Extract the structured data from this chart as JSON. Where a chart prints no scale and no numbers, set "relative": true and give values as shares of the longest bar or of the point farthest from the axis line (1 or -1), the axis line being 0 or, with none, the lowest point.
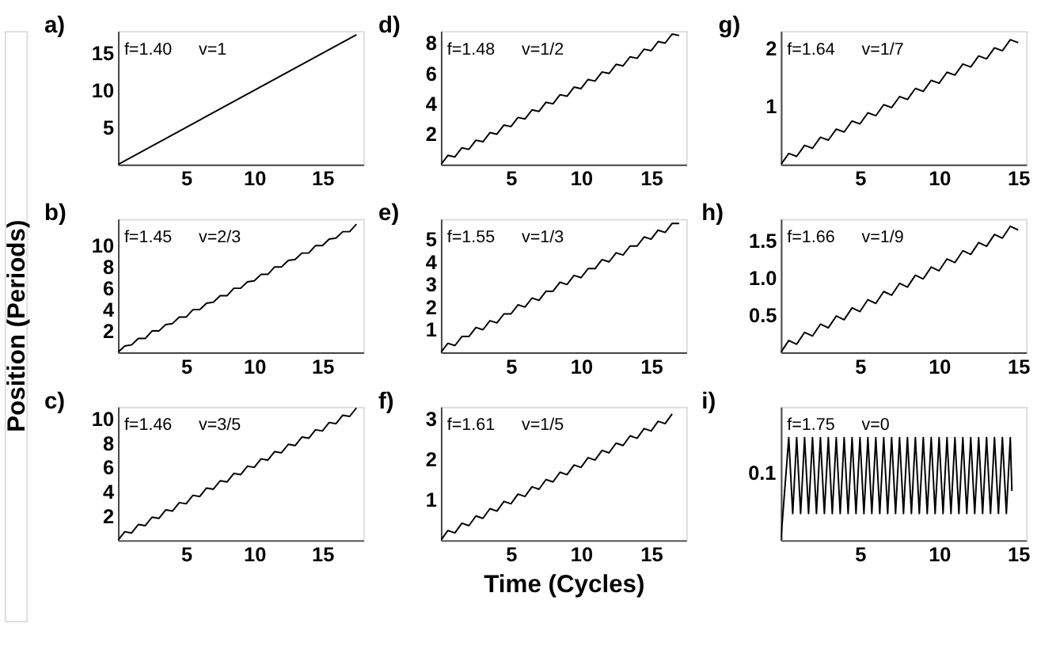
{
  "chart_data": [
    {
      "type": "line",
      "title": "a)",
      "annotations": [
        "f=1.40",
        "v=1"
      ],
      "color": "#000000",
      "xlim": [
        0,
        18
      ],
      "xticks": [
        5,
        10,
        15
      ],
      "ylim": [
        0,
        18
      ],
      "yticks": [
        5,
        10,
        15
      ],
      "x": [
        0,
        17.5
      ],
      "values": [
        0,
        17.5
      ]
    },
    {
      "type": "line",
      "title": "b)",
      "ylabel": "Position (Periods)",
      "annotations": [
        "f=1.45",
        "v=2/3"
      ],
      "color": "#000000",
      "xlim": [
        0,
        18
      ],
      "xticks": [
        5,
        10,
        15
      ],
      "ylim": [
        0,
        12.5
      ],
      "yticks": [
        2,
        4,
        6,
        8,
        10
      ],
      "x": [
        0,
        0.5,
        1,
        1.5,
        2,
        2.5,
        3,
        3.5,
        4,
        4.5,
        5,
        5.5,
        6,
        6.5,
        7,
        7.5,
        8,
        8.5,
        9,
        9.5,
        10,
        10.5,
        11,
        11.5,
        12,
        12.5,
        13,
        13.5,
        14,
        14.5,
        15,
        15.5,
        16,
        16.5,
        17,
        17.5
      ],
      "values": [
        0,
        0.6,
        0.7,
        1.3,
        1.3,
        2.0,
        2.0,
        2.6,
        2.7,
        3.3,
        3.3,
        4.0,
        4.0,
        4.6,
        4.7,
        5.3,
        5.3,
        6.0,
        6.0,
        6.6,
        6.7,
        7.3,
        7.3,
        8.0,
        8.0,
        8.6,
        8.7,
        9.3,
        9.3,
        10.0,
        10.0,
        10.6,
        10.7,
        11.3,
        11.3,
        12.0
      ]
    },
    {
      "type": "line",
      "title": "c)",
      "annotations": [
        "f=1.46",
        "v=3/5"
      ],
      "color": "#000000",
      "xlim": [
        0,
        18
      ],
      "xticks": [
        5,
        10,
        15
      ],
      "ylim": [
        0,
        11
      ],
      "yticks": [
        2,
        4,
        6,
        8,
        10
      ],
      "x": [
        0,
        0.5,
        1,
        1.5,
        2,
        2.5,
        3,
        3.5,
        4,
        4.5,
        5,
        5.5,
        6,
        6.5,
        7,
        7.5,
        8,
        8.5,
        9,
        9.5,
        10,
        10.5,
        11,
        11.5,
        12,
        12.5,
        13,
        13.5,
        14,
        14.5,
        15,
        15.5,
        16,
        16.5,
        17,
        17.5
      ],
      "values": [
        0,
        0.7,
        0.6,
        1.3,
        1.2,
        1.9,
        1.8,
        2.5,
        2.4,
        3.1,
        3.0,
        3.7,
        3.6,
        4.3,
        4.2,
        4.9,
        4.8,
        5.5,
        5.4,
        6.1,
        6.0,
        6.7,
        6.6,
        7.3,
        7.2,
        7.9,
        7.8,
        8.5,
        8.4,
        9.1,
        9.0,
        9.7,
        9.6,
        10.3,
        10.2,
        10.9
      ]
    },
    {
      "type": "line",
      "title": "d)",
      "annotations": [
        "f=1.48",
        "v=1/2"
      ],
      "color": "#000000",
      "xlim": [
        0,
        17.5
      ],
      "xticks": [
        5,
        10,
        15
      ],
      "ylim": [
        0,
        8.8
      ],
      "yticks": [
        2,
        4,
        6,
        8
      ],
      "x": [
        0,
        0.5,
        1,
        1.5,
        2,
        2.5,
        3,
        3.5,
        4,
        4.5,
        5,
        5.5,
        6,
        6.5,
        7,
        7.5,
        8,
        8.5,
        9,
        9.5,
        10,
        10.5,
        11,
        11.5,
        12,
        12.5,
        13,
        13.5,
        14,
        14.5,
        15,
        15.5,
        16,
        16.5,
        17
      ],
      "values": [
        0,
        0.6,
        0.5,
        1.1,
        1.0,
        1.6,
        1.5,
        2.1,
        2.0,
        2.6,
        2.5,
        3.1,
        3.0,
        3.6,
        3.5,
        4.1,
        4.0,
        4.6,
        4.5,
        5.1,
        5.0,
        5.6,
        5.5,
        6.1,
        6.0,
        6.6,
        6.5,
        7.1,
        7.0,
        7.6,
        7.5,
        8.1,
        8.0,
        8.6,
        8.5
      ]
    },
    {
      "type": "line",
      "title": "e)",
      "annotations": [
        "f=1.55",
        "v=1/3"
      ],
      "color": "#000000",
      "xlim": [
        0,
        17.5
      ],
      "xticks": [
        5,
        10,
        15
      ],
      "ylim": [
        0,
        5.9
      ],
      "yticks": [
        1,
        2,
        3,
        4,
        5
      ],
      "x": [
        0,
        0.5,
        1,
        1.5,
        2,
        2.5,
        3,
        3.5,
        4,
        4.5,
        5,
        5.5,
        6,
        6.5,
        7,
        7.5,
        8,
        8.5,
        9,
        9.5,
        10,
        10.5,
        11,
        11.5,
        12,
        12.5,
        13,
        13.5,
        14,
        14.5,
        15,
        15.5,
        16,
        16.5,
        17
      ],
      "values": [
        0,
        0.4,
        0.3,
        0.7,
        0.7,
        1.1,
        1.0,
        1.4,
        1.3,
        1.7,
        1.7,
        2.1,
        2.0,
        2.4,
        2.3,
        2.7,
        2.7,
        3.1,
        3.0,
        3.4,
        3.3,
        3.7,
        3.7,
        4.1,
        4.0,
        4.4,
        4.3,
        4.7,
        4.7,
        5.1,
        5.0,
        5.4,
        5.3,
        5.7,
        5.7
      ]
    },
    {
      "type": "line",
      "title": "f)",
      "xlabel": "Time (Cycles)",
      "annotations": [
        "f=1.61",
        "v=1/5"
      ],
      "color": "#000000",
      "xlim": [
        0,
        17.5
      ],
      "xticks": [
        5,
        10,
        15
      ],
      "ylim": [
        0,
        3.3
      ],
      "yticks": [
        1,
        2,
        3
      ],
      "x": [
        0,
        0.5,
        1,
        1.5,
        2,
        2.5,
        3,
        3.5,
        4,
        4.5,
        5,
        5.5,
        6,
        6.5,
        7,
        7.5,
        8,
        8.5,
        9,
        9.5,
        10,
        10.5,
        11,
        11.5,
        12,
        12.5,
        13,
        13.5,
        14,
        14.5,
        15,
        15.5,
        16,
        16.5
      ],
      "values": [
        0,
        0.24,
        0.18,
        0.42,
        0.36,
        0.6,
        0.54,
        0.78,
        0.72,
        0.96,
        0.9,
        1.14,
        1.08,
        1.32,
        1.26,
        1.5,
        1.44,
        1.68,
        1.62,
        1.86,
        1.8,
        2.04,
        1.98,
        2.22,
        2.16,
        2.4,
        2.34,
        2.58,
        2.52,
        2.76,
        2.7,
        2.94,
        2.88,
        3.12
      ]
    },
    {
      "type": "line",
      "title": "g)",
      "annotations": [
        "f=1.64",
        "v=1/7"
      ],
      "color": "#000000",
      "xlim": [
        0,
        15.5
      ],
      "xticks": [
        5,
        10,
        15
      ],
      "ylim": [
        0,
        2.3
      ],
      "yticks": [
        1,
        2
      ],
      "x": [
        0,
        0.5,
        1,
        1.5,
        2,
        2.5,
        3,
        3.5,
        4,
        4.5,
        5,
        5.5,
        6,
        6.5,
        7,
        7.5,
        8,
        8.5,
        9,
        9.5,
        10,
        10.5,
        11,
        11.5,
        12,
        12.5,
        13,
        13.5,
        14,
        14.5,
        15
      ],
      "values": [
        0,
        0.19,
        0.14,
        0.33,
        0.28,
        0.47,
        0.42,
        0.61,
        0.56,
        0.75,
        0.7,
        0.89,
        0.84,
        1.03,
        0.98,
        1.17,
        1.12,
        1.31,
        1.26,
        1.45,
        1.4,
        1.59,
        1.54,
        1.73,
        1.68,
        1.87,
        1.82,
        2.01,
        1.96,
        2.15,
        2.1
      ]
    },
    {
      "type": "line",
      "title": "h)",
      "annotations": [
        "f=1.66",
        "v=1/9"
      ],
      "color": "#000000",
      "xlim": [
        0,
        15.5
      ],
      "xticks": [
        5,
        10,
        15
      ],
      "ylim": [
        0,
        1.8
      ],
      "yticks": [
        {
          "value": 0.5,
          "label": "0.5"
        },
        {
          "value": 1,
          "label": "1.0"
        },
        {
          "value": 1.5,
          "label": "1.5"
        }
      ],
      "x": [
        0,
        0.5,
        1,
        1.5,
        2,
        2.5,
        3,
        3.5,
        4,
        4.5,
        5,
        5.5,
        6,
        6.5,
        7,
        7.5,
        8,
        8.5,
        9,
        9.5,
        10,
        10.5,
        11,
        11.5,
        12,
        12.5,
        13,
        13.5,
        14,
        14.5,
        15
      ],
      "values": [
        0,
        0.16,
        0.11,
        0.27,
        0.22,
        0.38,
        0.33,
        0.49,
        0.44,
        0.6,
        0.55,
        0.71,
        0.66,
        0.82,
        0.77,
        0.93,
        0.88,
        1.04,
        0.99,
        1.15,
        1.1,
        1.26,
        1.21,
        1.37,
        1.32,
        1.48,
        1.43,
        1.59,
        1.54,
        1.7,
        1.65
      ]
    },
    {
      "type": "line",
      "title": "i)",
      "annotations": [
        "f=1.75",
        "v=0",
        "0.1"
      ],
      "relative": true,
      "color": "#000000",
      "xlim": [
        0,
        15.5
      ],
      "xticks": [
        5,
        10,
        15
      ],
      "x": [
        0,
        0.5,
        0.75,
        1,
        1.25,
        1.5,
        1.75,
        2,
        2.25,
        2.5,
        2.75,
        3,
        3.25,
        3.5,
        3.75,
        4,
        4.25,
        4.5,
        4.75,
        5,
        5.25,
        5.5,
        5.75,
        6,
        6.25,
        6.5,
        6.75,
        7,
        7.25,
        7.5,
        7.75,
        8,
        8.25,
        8.5,
        8.75,
        9,
        9.25,
        9.5,
        9.75,
        10,
        10.25,
        10.5,
        10.75,
        11,
        11.25,
        11.5,
        11.75,
        12,
        12.25,
        12.5,
        12.75,
        13,
        13.25,
        13.5,
        13.75,
        14,
        14.25,
        14.5,
        14.6
      ],
      "values": [
        0,
        1,
        0.26,
        1,
        0.26,
        1,
        0.26,
        1,
        0.26,
        1,
        0.26,
        1,
        0.26,
        1,
        0.26,
        1,
        0.26,
        1,
        0.26,
        1,
        0.26,
        1,
        0.26,
        1,
        0.26,
        1,
        0.26,
        1,
        0.26,
        1,
        0.26,
        1,
        0.26,
        1,
        0.26,
        1,
        0.26,
        1,
        0.26,
        1,
        0.26,
        1,
        0.26,
        1,
        0.26,
        1,
        0.26,
        1,
        0.26,
        1,
        0.26,
        1,
        0.26,
        1,
        0.26,
        1,
        0.26,
        1,
        0.48
      ]
    }
  ]
}
